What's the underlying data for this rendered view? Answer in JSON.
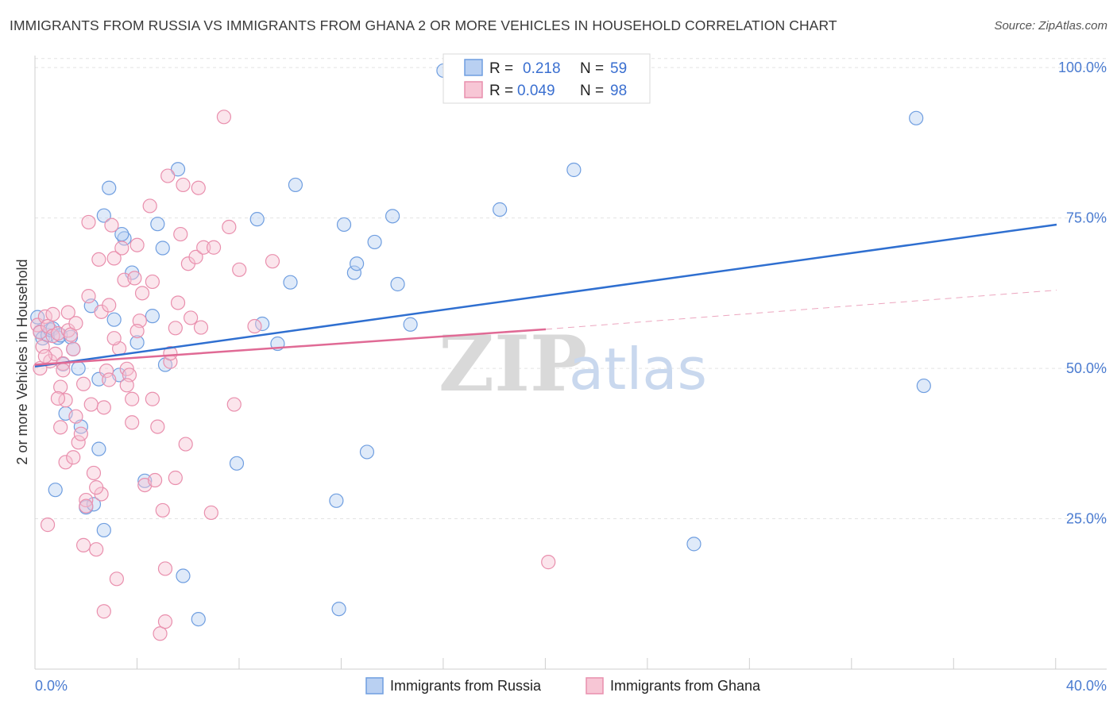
{
  "chart_data": {
    "type": "scatter",
    "title": "IMMIGRANTS FROM RUSSIA VS IMMIGRANTS FROM GHANA 2 OR MORE VEHICLES IN HOUSEHOLD CORRELATION CHART",
    "source": "Source: ZipAtlas.com",
    "ylabel": "2 or more Vehicles in Household",
    "xlim": [
      0,
      40
    ],
    "ylim": [
      0,
      102
    ],
    "x_tick_labels": [
      "0.0%",
      "40.0%"
    ],
    "y_ticks": [
      {
        "value": 25,
        "label": "25.0%"
      },
      {
        "value": 50,
        "label": "50.0%"
      },
      {
        "value": 75,
        "label": "75.0%"
      },
      {
        "value": 100,
        "label": "100.0%"
      }
    ],
    "watermark": {
      "zip": "ZIP",
      "atlas": "atlas"
    },
    "legend": {
      "r_label": "R =",
      "n_label": "N =",
      "entries": [
        {
          "r": "0.218",
          "n": "59"
        },
        {
          "r": "0.049",
          "n": "98"
        }
      ]
    },
    "series": [
      {
        "name": "Immigrants from Russia",
        "color": "#6f9ee0",
        "fill": "#b9d0f2",
        "line_color": "#2f6fd0",
        "trend": {
          "x": [
            0,
            40
          ],
          "y": [
            50.3,
            73.9
          ]
        },
        "points": [
          [
            0.1,
            58.5
          ],
          [
            0.2,
            56.1
          ],
          [
            0.3,
            55.0
          ],
          [
            0.5,
            55.5
          ],
          [
            0.6,
            56.4
          ],
          [
            0.7,
            56.6
          ],
          [
            0.9,
            55.1
          ],
          [
            1.0,
            55.5
          ],
          [
            1.1,
            50.7
          ],
          [
            1.2,
            42.5
          ],
          [
            1.4,
            55.2
          ],
          [
            1.5,
            53.2
          ],
          [
            1.7,
            50.0
          ],
          [
            1.8,
            40.3
          ],
          [
            2.0,
            26.9
          ],
          [
            2.2,
            60.4
          ],
          [
            2.3,
            27.4
          ],
          [
            2.5,
            48.2
          ],
          [
            2.5,
            36.6
          ],
          [
            2.7,
            75.4
          ],
          [
            2.9,
            80.0
          ],
          [
            3.1,
            58.1
          ],
          [
            3.3,
            48.9
          ],
          [
            3.5,
            71.6
          ],
          [
            3.4,
            72.3
          ],
          [
            3.8,
            65.9
          ],
          [
            4.0,
            54.3
          ],
          [
            4.3,
            31.3
          ],
          [
            4.6,
            58.7
          ],
          [
            4.8,
            74.0
          ],
          [
            5.0,
            70.0
          ],
          [
            5.1,
            50.6
          ],
          [
            5.6,
            83.1
          ],
          [
            6.4,
            8.3
          ],
          [
            7.9,
            34.2
          ],
          [
            8.9,
            57.4
          ],
          [
            8.7,
            74.8
          ],
          [
            9.5,
            54.1
          ],
          [
            10.0,
            64.3
          ],
          [
            10.2,
            80.5
          ],
          [
            11.8,
            28.0
          ],
          [
            11.9,
            10.0
          ],
          [
            12.1,
            73.9
          ],
          [
            12.5,
            65.9
          ],
          [
            12.6,
            67.4
          ],
          [
            13.0,
            36.1
          ],
          [
            13.3,
            71.0
          ],
          [
            14.0,
            75.3
          ],
          [
            14.2,
            64.0
          ],
          [
            14.7,
            57.3
          ],
          [
            16.0,
            99.5
          ],
          [
            18.2,
            76.4
          ],
          [
            21.1,
            83.0
          ],
          [
            25.8,
            20.8
          ],
          [
            34.5,
            91.6
          ],
          [
            34.8,
            47.1
          ],
          [
            0.8,
            29.8
          ],
          [
            2.7,
            23.1
          ],
          [
            5.8,
            15.5
          ]
        ]
      },
      {
        "name": "Immigrants from Ghana",
        "color": "#e98fad",
        "fill": "#f7c6d5",
        "line_color": "#e06a95",
        "trend": {
          "x": [
            0,
            20
          ],
          "y": [
            50.6,
            56.5
          ]
        },
        "trend_dashed": {
          "x": [
            20,
            40
          ],
          "y": [
            56.5,
            63.0
          ]
        },
        "points": [
          [
            0.1,
            57.2
          ],
          [
            0.2,
            56.0
          ],
          [
            0.2,
            50.0
          ],
          [
            0.3,
            53.6
          ],
          [
            0.4,
            58.6
          ],
          [
            0.5,
            57.0
          ],
          [
            0.5,
            24.0
          ],
          [
            0.6,
            51.2
          ],
          [
            0.7,
            55.4
          ],
          [
            0.8,
            52.4
          ],
          [
            0.9,
            55.8
          ],
          [
            1.0,
            40.2
          ],
          [
            1.0,
            46.9
          ],
          [
            1.1,
            50.8
          ],
          [
            1.2,
            44.7
          ],
          [
            1.2,
            34.4
          ],
          [
            1.3,
            56.3
          ],
          [
            1.4,
            55.6
          ],
          [
            1.5,
            53.2
          ],
          [
            1.5,
            35.2
          ],
          [
            1.6,
            57.5
          ],
          [
            1.7,
            37.7
          ],
          [
            1.8,
            39.1
          ],
          [
            1.9,
            20.6
          ],
          [
            2.0,
            28.1
          ],
          [
            2.0,
            27.1
          ],
          [
            2.1,
            62.0
          ],
          [
            2.1,
            74.3
          ],
          [
            2.2,
            44.0
          ],
          [
            2.3,
            32.6
          ],
          [
            2.4,
            19.9
          ],
          [
            2.5,
            68.1
          ],
          [
            2.6,
            59.4
          ],
          [
            2.6,
            29.1
          ],
          [
            2.7,
            43.5
          ],
          [
            2.7,
            9.6
          ],
          [
            2.8,
            49.6
          ],
          [
            2.9,
            48.1
          ],
          [
            3.0,
            73.8
          ],
          [
            3.1,
            68.3
          ],
          [
            3.2,
            15.0
          ],
          [
            3.3,
            53.3
          ],
          [
            3.4,
            70.0
          ],
          [
            3.5,
            64.7
          ],
          [
            3.6,
            49.9
          ],
          [
            3.7,
            48.9
          ],
          [
            3.8,
            41.0
          ],
          [
            3.8,
            44.9
          ],
          [
            3.9,
            65.0
          ],
          [
            4.0,
            70.5
          ],
          [
            4.1,
            57.9
          ],
          [
            4.2,
            62.5
          ],
          [
            4.3,
            30.6
          ],
          [
            4.5,
            77.0
          ],
          [
            4.6,
            64.4
          ],
          [
            4.6,
            44.9
          ],
          [
            4.7,
            31.4
          ],
          [
            4.8,
            40.3
          ],
          [
            4.9,
            5.9
          ],
          [
            5.0,
            26.4
          ],
          [
            5.1,
            16.7
          ],
          [
            5.1,
            7.9
          ],
          [
            5.2,
            82.0
          ],
          [
            5.3,
            51.1
          ],
          [
            5.3,
            52.5
          ],
          [
            5.5,
            56.7
          ],
          [
            5.6,
            60.9
          ],
          [
            5.7,
            72.3
          ],
          [
            5.8,
            80.5
          ],
          [
            5.9,
            37.4
          ],
          [
            6.0,
            67.4
          ],
          [
            6.3,
            68.5
          ],
          [
            6.4,
            80.0
          ],
          [
            6.5,
            56.8
          ],
          [
            6.6,
            70.1
          ],
          [
            6.9,
            26.0
          ],
          [
            7.0,
            70.1
          ],
          [
            7.4,
            91.8
          ],
          [
            7.6,
            73.5
          ],
          [
            7.8,
            44.0
          ],
          [
            8.0,
            66.4
          ],
          [
            8.6,
            57.0
          ],
          [
            9.3,
            67.8
          ],
          [
            1.3,
            59.3
          ],
          [
            0.9,
            45.0
          ],
          [
            1.6,
            42.0
          ],
          [
            2.4,
            30.2
          ],
          [
            3.6,
            47.2
          ],
          [
            5.5,
            31.8
          ],
          [
            0.4,
            52.0
          ],
          [
            1.1,
            49.7
          ],
          [
            2.9,
            60.5
          ],
          [
            4.0,
            56.2
          ],
          [
            6.1,
            58.4
          ],
          [
            0.7,
            59.0
          ],
          [
            1.9,
            47.4
          ],
          [
            3.1,
            55.0
          ],
          [
            20.1,
            17.8
          ]
        ]
      }
    ]
  }
}
